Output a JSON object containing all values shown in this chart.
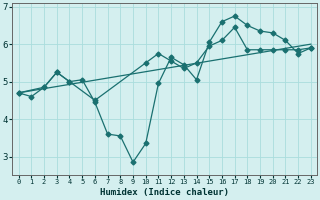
{
  "xlabel": "Humidex (Indice chaleur)",
  "bg_color": "#d4efef",
  "line_color": "#1a7070",
  "grid_color": "#aadddd",
  "xlim": [
    -0.5,
    23.5
  ],
  "ylim": [
    2.5,
    7.1
  ],
  "yticks": [
    3,
    4,
    5,
    6,
    7
  ],
  "xticks": [
    0,
    1,
    2,
    3,
    4,
    5,
    6,
    7,
    8,
    9,
    10,
    11,
    12,
    13,
    14,
    15,
    16,
    17,
    18,
    19,
    20,
    21,
    22,
    23
  ],
  "series1_x": [
    0,
    1,
    2,
    3,
    4,
    5,
    6,
    7,
    8,
    9,
    10,
    11,
    12,
    13,
    14,
    15,
    16,
    17,
    18,
    19,
    20,
    21,
    22,
    23
  ],
  "series1_y": [
    4.7,
    4.6,
    4.85,
    5.25,
    5.0,
    5.05,
    4.45,
    3.6,
    3.55,
    2.85,
    3.35,
    4.95,
    5.65,
    5.45,
    5.05,
    6.05,
    6.6,
    6.75,
    6.5,
    6.35,
    6.3,
    6.1,
    5.75,
    5.9
  ],
  "series2_x": [
    0,
    2,
    3,
    4,
    6,
    10,
    11,
    12,
    13,
    14,
    15,
    16,
    17,
    18,
    19,
    20,
    21,
    22,
    23
  ],
  "series2_y": [
    4.7,
    4.85,
    5.25,
    5.0,
    4.5,
    5.5,
    5.75,
    5.55,
    5.35,
    5.5,
    5.95,
    6.1,
    6.45,
    5.85,
    5.85,
    5.85,
    5.85,
    5.85,
    5.9
  ],
  "trend_x": [
    0,
    23
  ],
  "trend_y": [
    4.7,
    6.0
  ]
}
